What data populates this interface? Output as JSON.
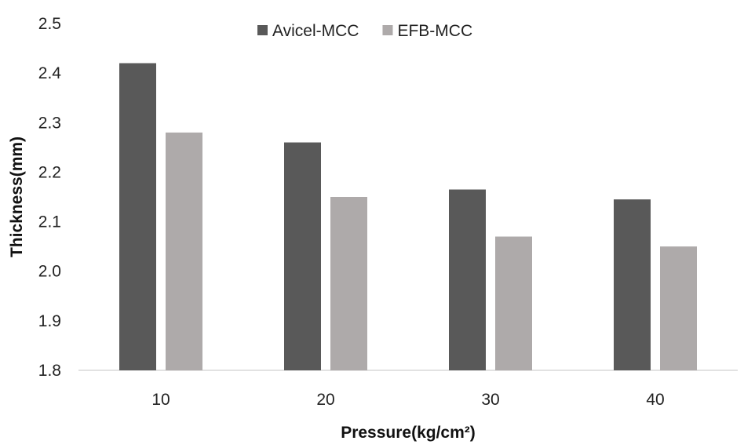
{
  "chart_data": {
    "type": "bar",
    "categories": [
      "10",
      "20",
      "30",
      "40"
    ],
    "series": [
      {
        "name": "Avicel-MCC",
        "values": [
          2.42,
          2.26,
          2.165,
          2.145
        ],
        "color": "#595959"
      },
      {
        "name": "EFB-MCC",
        "values": [
          2.28,
          2.15,
          2.07,
          2.05
        ],
        "color": "#aeaaaa"
      }
    ],
    "title": "",
    "xlabel": "Pressure(kg/cm²)",
    "ylabel": "Thickness(mm)",
    "ylim": [
      1.8,
      2.5
    ],
    "yticks": [
      "1.8",
      "1.9",
      "2.0",
      "2.1",
      "2.2",
      "2.3",
      "2.4",
      "2.5"
    ],
    "grid": false,
    "legend_position": "top-center"
  }
}
